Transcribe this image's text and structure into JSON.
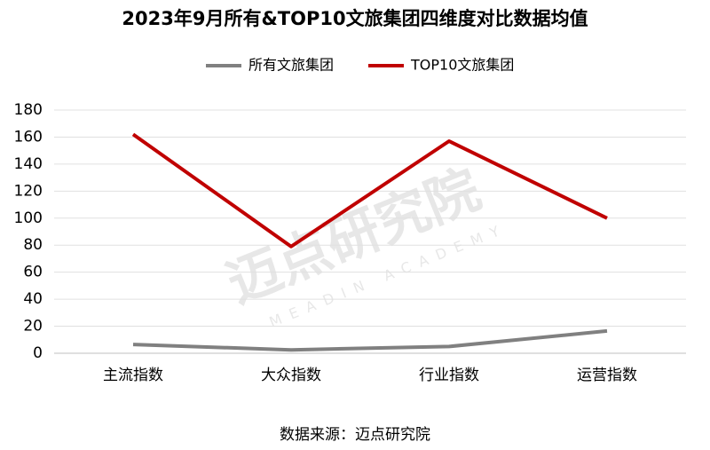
{
  "chart_data": {
    "type": "line",
    "title": "2023年9月所有&TOP10文旅集团四维度对比数据均值",
    "categories": [
      "主流指数",
      "大众指数",
      "行业指数",
      "运营指数"
    ],
    "series": [
      {
        "name": "所有文旅集团",
        "color": "#808080",
        "values": [
          6.5,
          2.5,
          5,
          16.5
        ]
      },
      {
        "name": "TOP10文旅集团",
        "color": "#c00000",
        "values": [
          162,
          79,
          157,
          100
        ]
      }
    ],
    "ylim": [
      0,
      180
    ],
    "yticks": [
      0,
      20,
      40,
      60,
      80,
      100,
      120,
      140,
      160,
      180
    ],
    "grid": true,
    "legend": "top",
    "source": "数据来源：迈点研究院",
    "watermark": "迈点研究院",
    "watermark_en": "MEADIN ACADEMY"
  }
}
